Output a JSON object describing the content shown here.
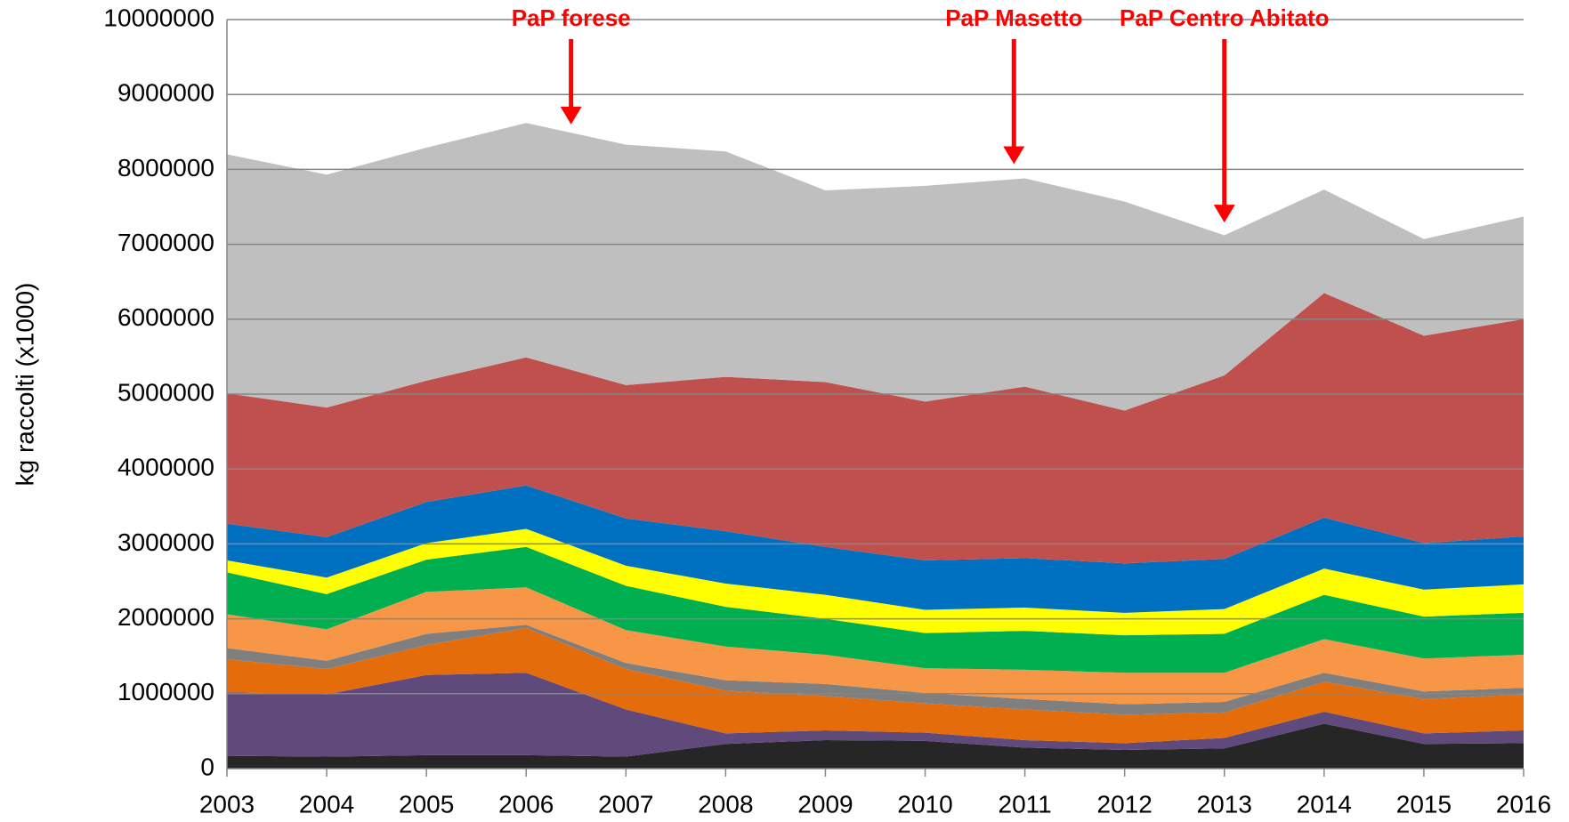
{
  "chart_data": {
    "type": "stacked_area",
    "y_label": "kg raccolti (x1000)",
    "x": [
      2003,
      2004,
      2005,
      2006,
      2007,
      2008,
      2009,
      2010,
      2011,
      2012,
      2013,
      2014,
      2015,
      2016
    ],
    "xlim": [
      2003,
      2016
    ],
    "ylim": [
      0,
      10000000
    ],
    "yticks": [
      0,
      1000000,
      2000000,
      3000000,
      4000000,
      5000000,
      6000000,
      7000000,
      8000000,
      9000000,
      10000000
    ],
    "grid": true,
    "series": [
      {
        "color": "#262626",
        "values": [
          170000,
          160000,
          180000,
          180000,
          160000,
          330000,
          380000,
          370000,
          280000,
          250000,
          270000,
          600000,
          330000,
          340000
        ]
      },
      {
        "color": "#604a7b",
        "values": [
          850000,
          830000,
          1070000,
          1100000,
          630000,
          140000,
          130000,
          110000,
          100000,
          90000,
          140000,
          160000,
          140000,
          170000
        ]
      },
      {
        "color": "#e46c0a",
        "values": [
          440000,
          340000,
          400000,
          600000,
          540000,
          570000,
          460000,
          390000,
          410000,
          380000,
          340000,
          400000,
          460000,
          480000
        ]
      },
      {
        "color": "#7f7f7f",
        "values": [
          150000,
          110000,
          150000,
          40000,
          80000,
          140000,
          160000,
          140000,
          140000,
          140000,
          140000,
          120000,
          100000,
          90000
        ]
      },
      {
        "color": "#f79646",
        "values": [
          450000,
          420000,
          560000,
          500000,
          440000,
          450000,
          390000,
          330000,
          390000,
          420000,
          390000,
          450000,
          440000,
          440000
        ]
      },
      {
        "color": "#00b050",
        "values": [
          560000,
          470000,
          430000,
          540000,
          590000,
          530000,
          480000,
          470000,
          520000,
          500000,
          520000,
          590000,
          560000,
          560000
        ]
      },
      {
        "color": "#ffff00",
        "values": [
          160000,
          220000,
          220000,
          240000,
          270000,
          310000,
          320000,
          310000,
          310000,
          300000,
          330000,
          350000,
          360000,
          380000
        ]
      },
      {
        "color": "#0070c0",
        "values": [
          490000,
          540000,
          550000,
          580000,
          630000,
          700000,
          640000,
          660000,
          660000,
          660000,
          670000,
          680000,
          620000,
          640000
        ]
      },
      {
        "color": "#c0504d",
        "values": [
          1740000,
          1730000,
          1620000,
          1710000,
          1780000,
          2060000,
          2200000,
          2120000,
          2290000,
          2040000,
          2450000,
          3000000,
          2770000,
          2900000
        ]
      },
      {
        "color": "#bfbfbf",
        "values": [
          3190000,
          3110000,
          3110000,
          3130000,
          3210000,
          3010000,
          2560000,
          2880000,
          2780000,
          2790000,
          1870000,
          1380000,
          1290000,
          1370000
        ]
      }
    ],
    "annotation_color": "#ff0000",
    "annotations": [
      {
        "text": "PaP forese",
        "x": 2006.45,
        "y": 8600000
      },
      {
        "text": "PaP Masetto",
        "x": 2010.89,
        "y": 8070000
      },
      {
        "text": "PaP Centro Abitato",
        "x": 2013.0,
        "y": 7290000
      }
    ]
  }
}
